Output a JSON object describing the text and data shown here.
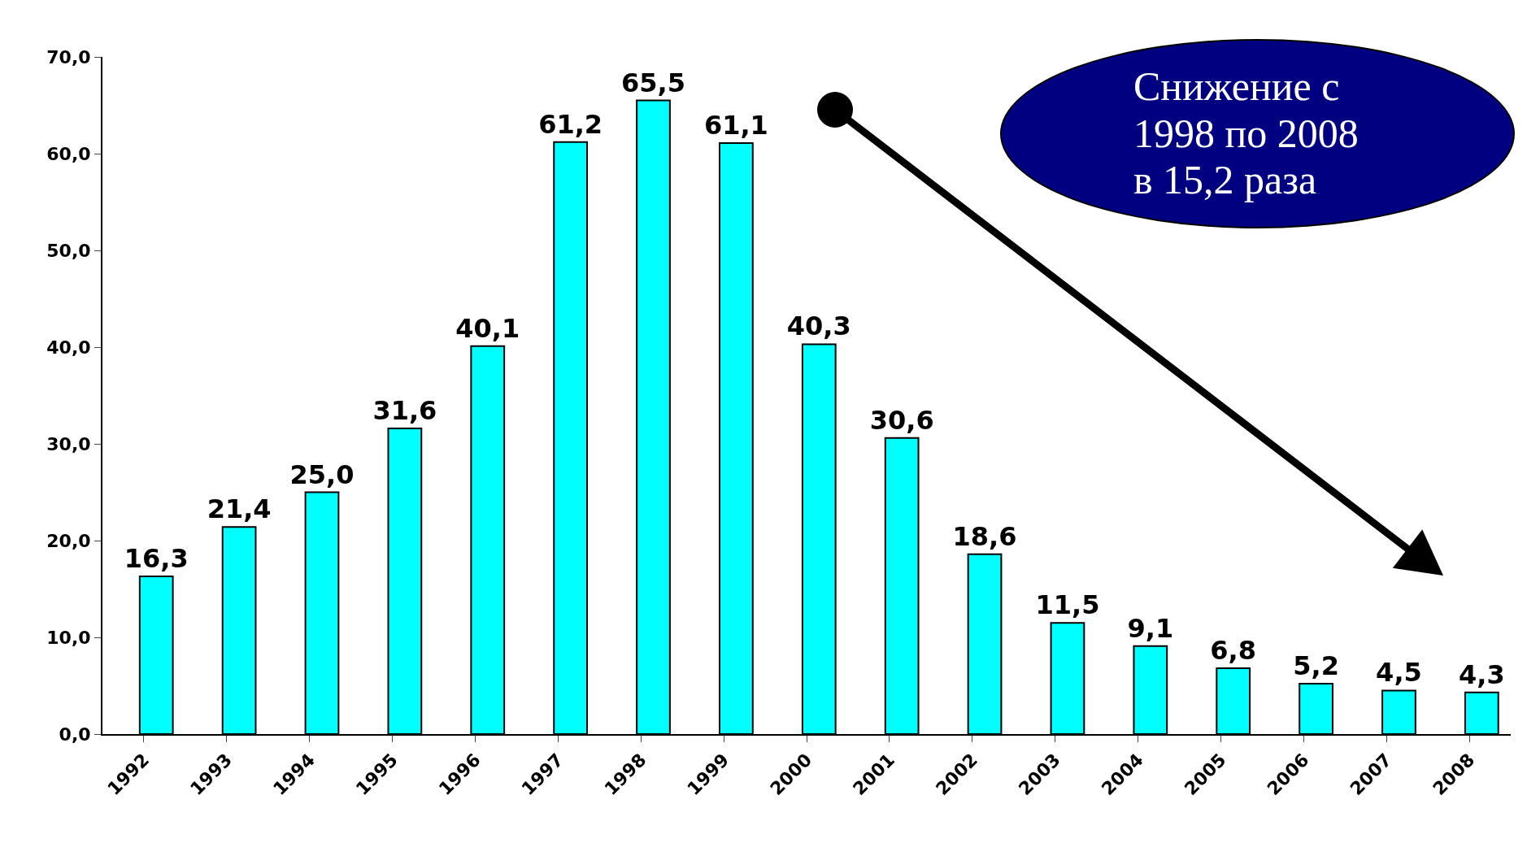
{
  "chart_data": {
    "type": "bar",
    "categories": [
      "1992",
      "1993",
      "1994",
      "1995",
      "1996",
      "1997",
      "1998",
      "1999",
      "2000",
      "2001",
      "2002",
      "2003",
      "2004",
      "2005",
      "2006",
      "2007",
      "2008"
    ],
    "values": [
      16.3,
      21.4,
      25.0,
      31.6,
      40.1,
      61.2,
      65.5,
      61.1,
      40.3,
      30.6,
      18.6,
      11.5,
      9.1,
      6.8,
      5.2,
      4.5,
      4.3
    ],
    "value_labels": [
      "16,3",
      "21,4",
      "25,0",
      "31,6",
      "40,1",
      "61,2",
      "65,5",
      "61,1",
      "40,3",
      "30,6",
      "18,6",
      "11,5",
      "9,1",
      "6,8",
      "5,2",
      "4,5",
      "4,3"
    ],
    "color": "#00ffff",
    "ylim": [
      0,
      70
    ],
    "yticks": [
      {
        "value": 0,
        "label": "0,0"
      },
      {
        "value": 10,
        "label": "10,0"
      },
      {
        "value": 20,
        "label": "20,0"
      },
      {
        "value": 30,
        "label": "30,0"
      },
      {
        "value": 40,
        "label": "40,0"
      },
      {
        "value": 50,
        "label": "50,0"
      },
      {
        "value": 60,
        "label": "60,0"
      },
      {
        "value": 70,
        "label": "70,0"
      }
    ],
    "annotations": [
      "Снижение с 1998 по 2008 в 15,2 раза"
    ]
  }
}
